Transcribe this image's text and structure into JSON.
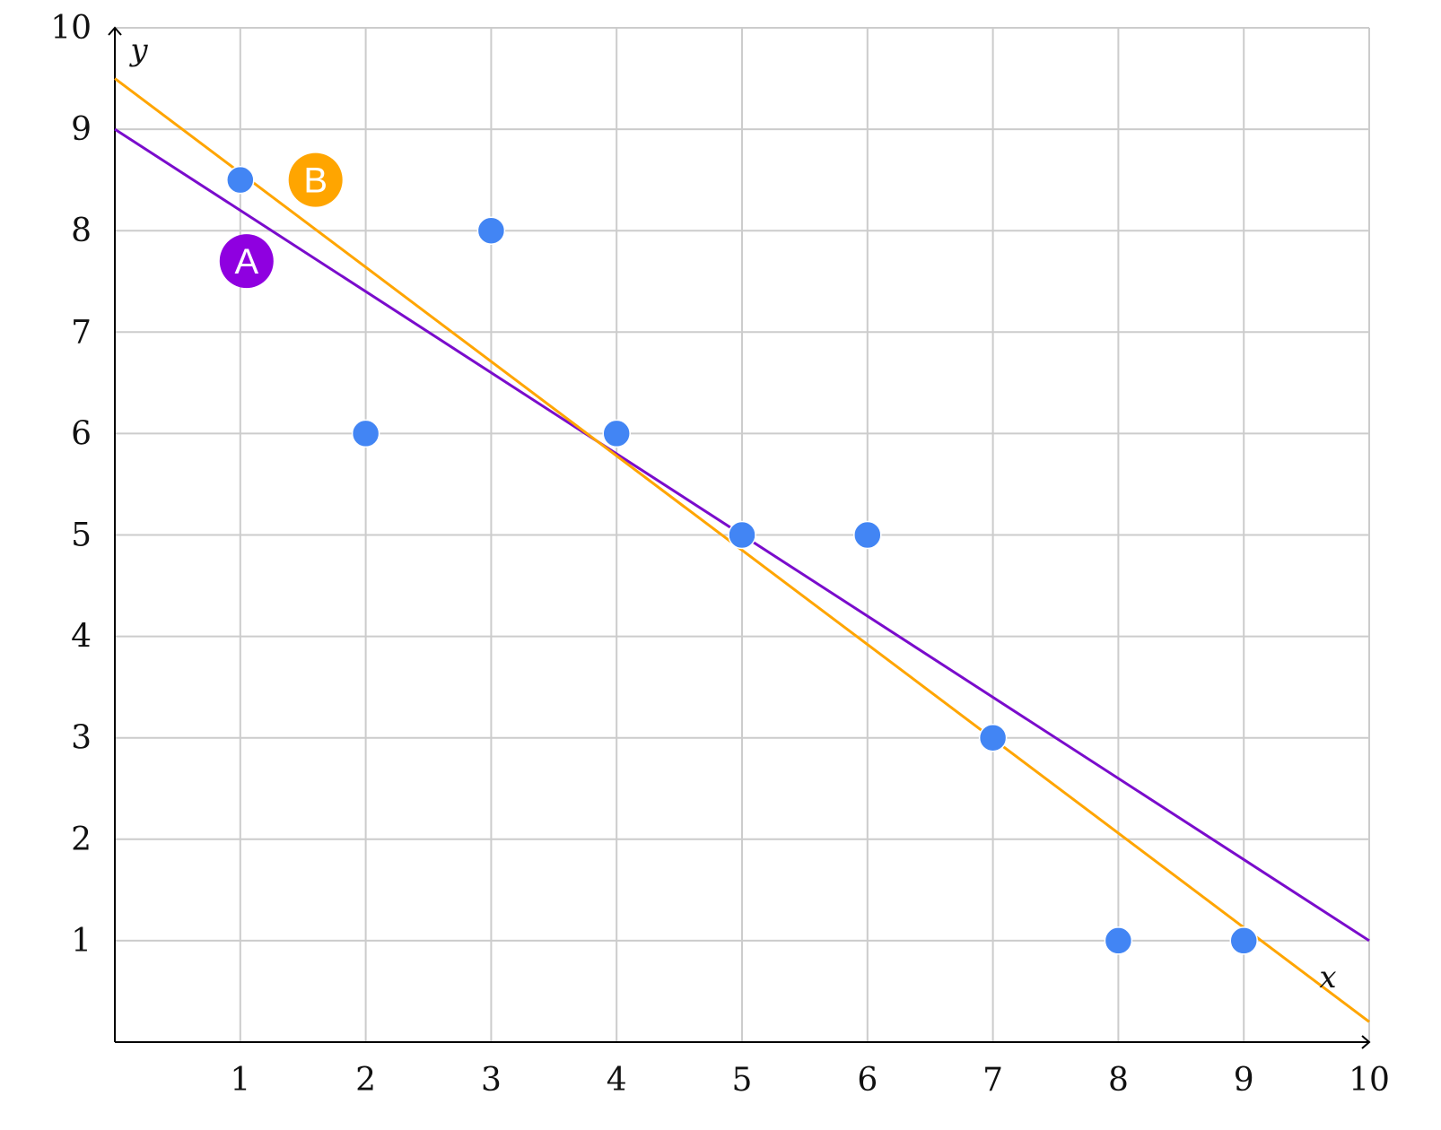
{
  "chart_data": {
    "type": "scatter",
    "xlabel": "x",
    "ylabel": "y",
    "xlim": [
      0,
      10
    ],
    "ylim": [
      0,
      10
    ],
    "grid": true,
    "x_ticks": [
      1,
      2,
      3,
      4,
      5,
      6,
      7,
      8,
      9,
      10
    ],
    "y_ticks": [
      1,
      2,
      3,
      4,
      5,
      6,
      7,
      8,
      9,
      10
    ],
    "points": [
      {
        "x": 1,
        "y": 8.5
      },
      {
        "x": 2,
        "y": 6
      },
      {
        "x": 3,
        "y": 8
      },
      {
        "x": 4,
        "y": 6
      },
      {
        "x": 5,
        "y": 5
      },
      {
        "x": 6,
        "y": 5
      },
      {
        "x": 7,
        "y": 3
      },
      {
        "x": 8,
        "y": 1
      },
      {
        "x": 9,
        "y": 1
      }
    ],
    "point_color": "#4285f4",
    "lines": [
      {
        "name": "A",
        "color": "#7a0ccc",
        "badge_color": "#8f00e0",
        "points": [
          [
            0,
            9
          ],
          [
            10,
            1
          ]
        ],
        "label_at": [
          1.05,
          7.7
        ]
      },
      {
        "name": "B",
        "color": "#ffa500",
        "badge_color": "#ffa500",
        "points": [
          [
            0,
            9.5
          ],
          [
            10,
            0.2
          ]
        ],
        "label_at": [
          1.6,
          8.5
        ]
      }
    ]
  }
}
